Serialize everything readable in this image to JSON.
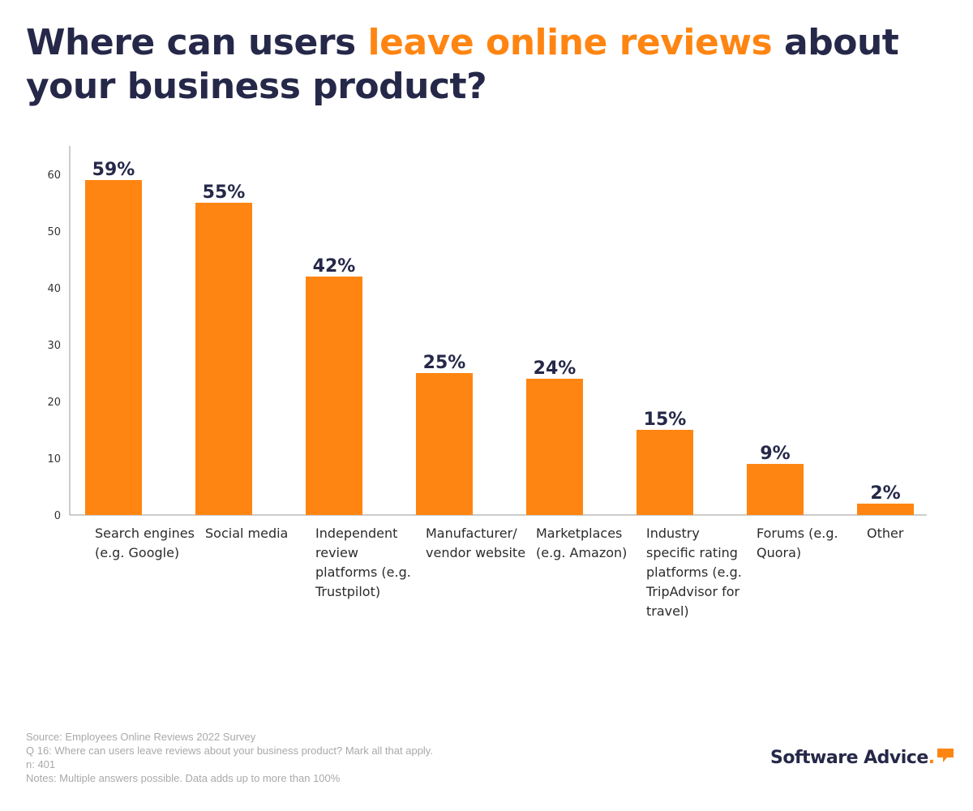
{
  "title": {
    "part1": "Where can users ",
    "highlight": "leave online reviews",
    "part2": " about your business product?"
  },
  "colors": {
    "bar": "#ff8512",
    "title": "#252848",
    "highlight": "#ff8512",
    "axis": "#999999"
  },
  "chart_data": {
    "type": "bar",
    "categories": [
      "Search engines (e.g. Google)",
      "Social media",
      "Independent review platforms (e.g. Trustpilot)",
      "Manufacturer/ vendor website",
      "Marketplaces (e.g. Amazon)",
      "Industry specific rating platforms (e.g. TripAdvisor for travel)",
      "Forums (e.g. Quora)",
      "Other"
    ],
    "values": [
      59,
      55,
      42,
      25,
      24,
      15,
      9,
      2
    ],
    "data_labels": [
      "59%",
      "55%",
      "42%",
      "25%",
      "24%",
      "15%",
      "9%",
      "2%"
    ],
    "yticks": [
      0,
      10,
      20,
      30,
      40,
      50,
      60
    ],
    "ylim": [
      0,
      65
    ],
    "grid": false,
    "title": "Where can users leave online reviews about your business product?",
    "xlabel": "",
    "ylabel": ""
  },
  "footnotes": {
    "source": "Source: Employees Online Reviews 2022 Survey",
    "question": "Q 16: Where can users leave reviews about your business product? Mark all that apply.",
    "n": "n: 401",
    "notes": "Notes: Multiple answers possible. Data adds up to more than 100%"
  },
  "brand": {
    "name": "Software Advice",
    "mark": "."
  }
}
